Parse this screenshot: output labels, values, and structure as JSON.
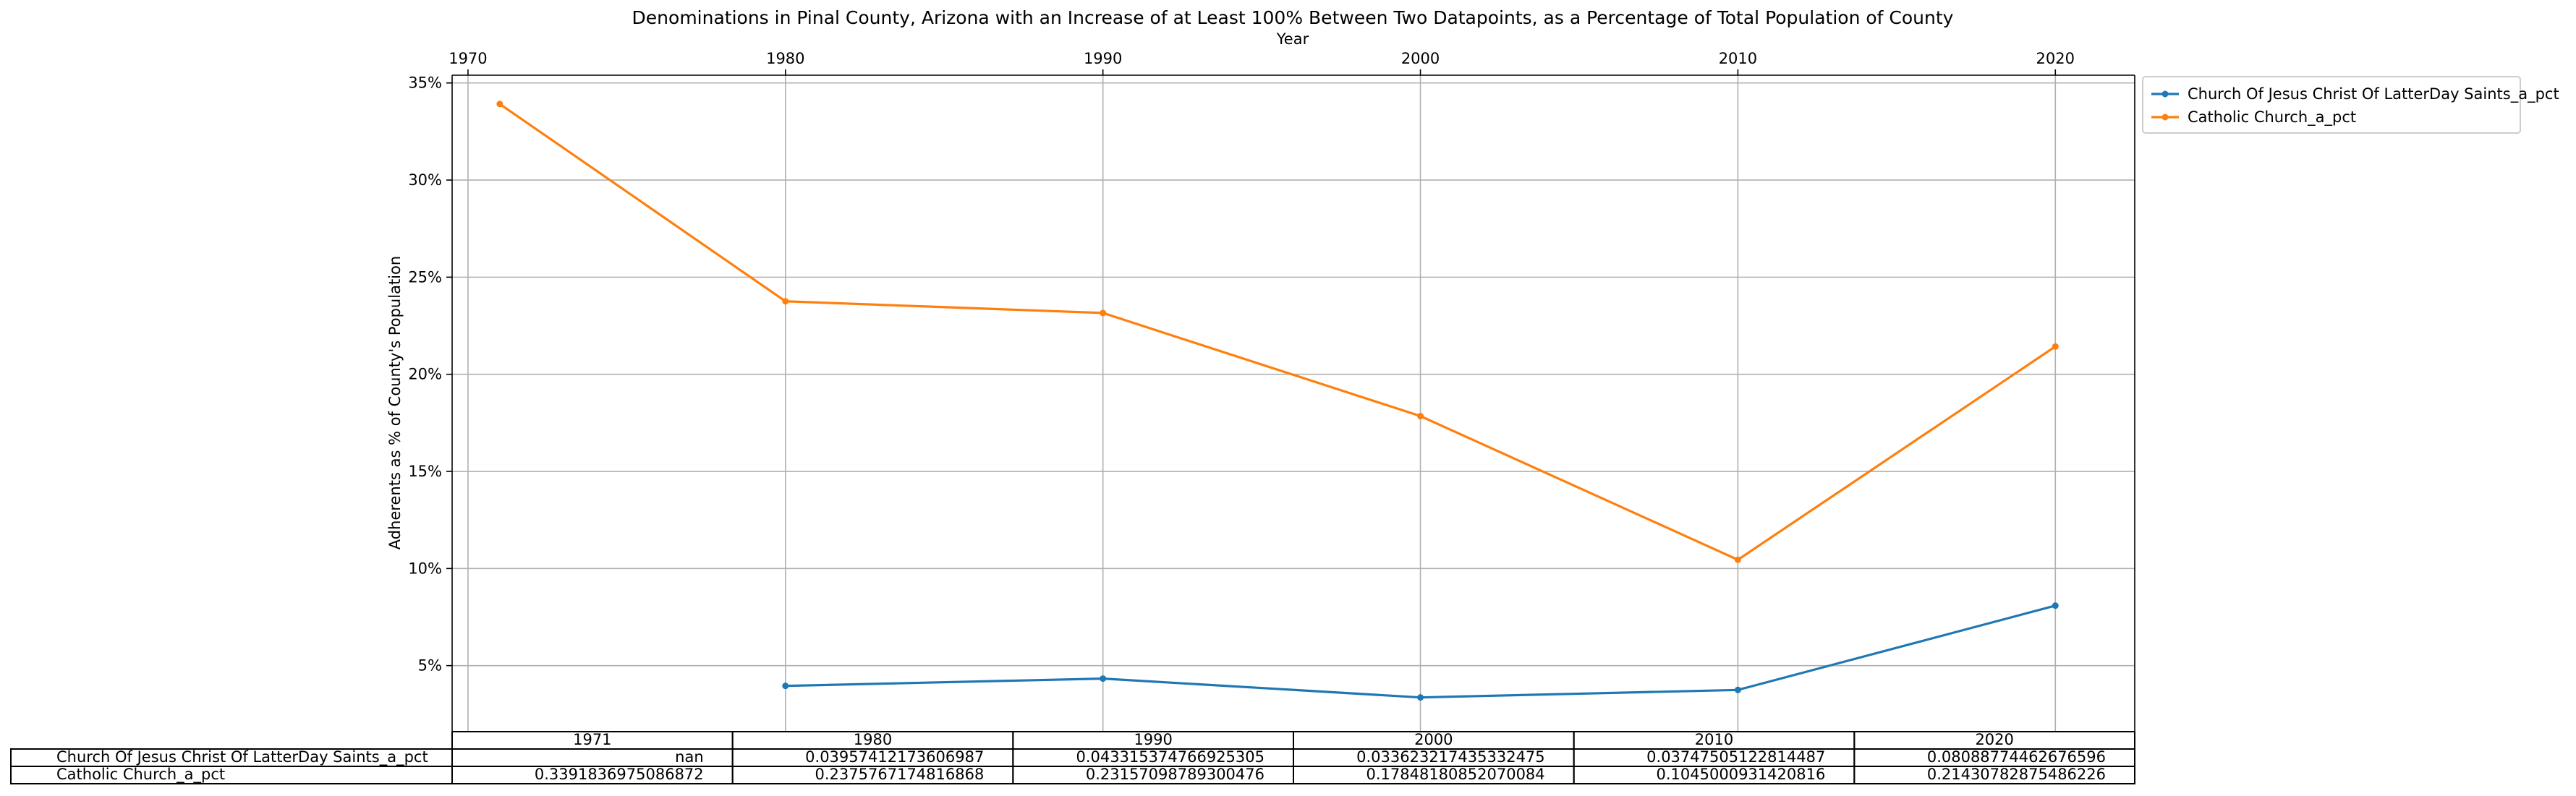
{
  "chart_data": {
    "type": "line",
    "title": "Denominations in Pinal County, Arizona with an Increase of at Least 100% Between Two Datapoints, as a Percentage of Total Population of County",
    "xlabel": "Year",
    "ylabel": "Adherents as % of County's Population",
    "x": [
      1971,
      1980,
      1990,
      2000,
      2010,
      2020
    ],
    "xticks": [
      "1970",
      "1980",
      "1990",
      "2000",
      "2010",
      "2020"
    ],
    "xlim": [
      1969.5,
      2022.5
    ],
    "yticks": [
      "5%",
      "10%",
      "15%",
      "20%",
      "25%",
      "30%",
      "35%"
    ],
    "ylim": [
      1.6,
      35.4
    ],
    "grid": true,
    "legend_position": "outside-top-right",
    "series": [
      {
        "name": "Church Of Jesus Christ Of LatterDay Saints_a_pct",
        "color": "#1f77b4",
        "values": [
          null,
          3.957,
          4.332,
          3.362,
          3.748,
          8.089
        ]
      },
      {
        "name": "Catholic Church_a_pct",
        "color": "#ff7f0e",
        "values": [
          33.918,
          23.758,
          23.157,
          17.848,
          10.45,
          21.431
        ]
      }
    ],
    "table": {
      "columns": [
        "1971",
        "1980",
        "1990",
        "2000",
        "2010",
        "2020"
      ],
      "rows": [
        {
          "label": "Church Of Jesus Christ Of LatterDay Saints_a_pct",
          "cells": [
            "nan",
            "0.03957412173606987",
            "0.043315374766925305",
            "0.033623217435332475",
            "0.03747505122814487",
            "0.08088774462676596"
          ]
        },
        {
          "label": "Catholic Church_a_pct",
          "cells": [
            "0.3391836975086872",
            "0.2375767174816868",
            "0.23157098789300476",
            "0.17848180852070084",
            "0.1045000931420816",
            "0.21430782875486226"
          ]
        }
      ]
    }
  }
}
